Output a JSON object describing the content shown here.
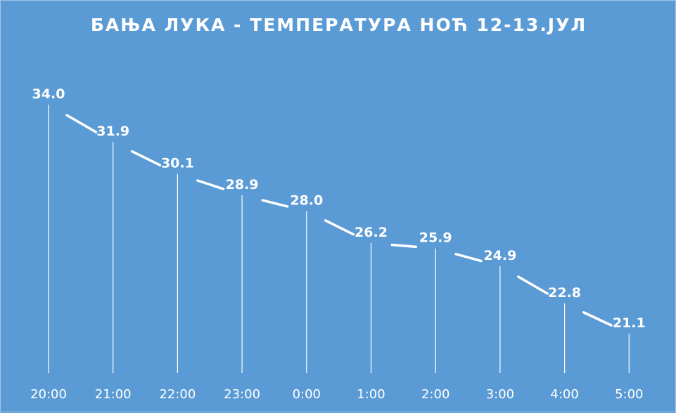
{
  "chart_data": {
    "type": "line",
    "title": "БАЊА ЛУКА - ТЕМПЕРАТУРА НОЋ 12-13.ЈУЛ",
    "categories": [
      "20:00",
      "21:00",
      "22:00",
      "23:00",
      "0:00",
      "1:00",
      "2:00",
      "3:00",
      "4:00",
      "5:00"
    ],
    "series": [
      {
        "values": [
          34.0,
          31.9,
          30.1,
          28.9,
          28.0,
          26.2,
          25.9,
          24.9,
          22.8,
          21.1
        ]
      }
    ],
    "data_labels": [
      "34.0",
      "31.9",
      "30.1",
      "28.9",
      "28.0",
      "26.2",
      "25.9",
      "24.9",
      "22.8",
      "21.1"
    ],
    "drop_lines": true,
    "grid": false,
    "legend": "none",
    "xlabel": "",
    "ylabel": "",
    "colors": {
      "background": "#5b9bd5",
      "line": "#ffffff",
      "text": "#ffffff"
    }
  }
}
